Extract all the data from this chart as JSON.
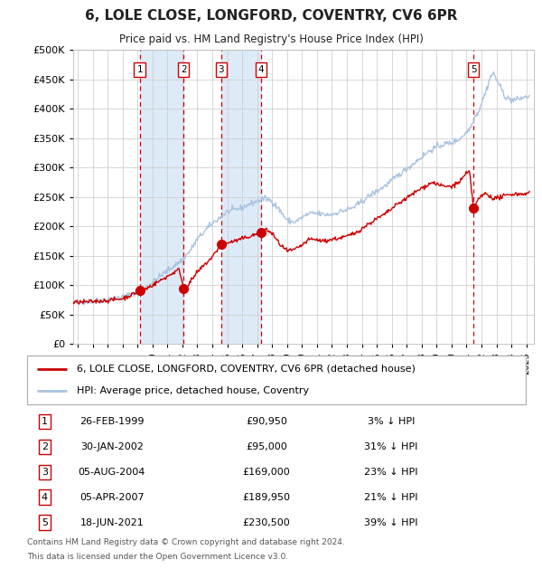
{
  "title": "6, LOLE CLOSE, LONGFORD, COVENTRY, CV6 6PR",
  "subtitle": "Price paid vs. HM Land Registry's House Price Index (HPI)",
  "legend_label_red": "6, LOLE CLOSE, LONGFORD, COVENTRY, CV6 6PR (detached house)",
  "legend_label_blue": "HPI: Average price, detached house, Coventry",
  "footer1": "Contains HM Land Registry data © Crown copyright and database right 2024.",
  "footer2": "This data is licensed under the Open Government Licence v3.0.",
  "transactions": [
    {
      "num": 1,
      "date": "26-FEB-1999",
      "price": 90950,
      "pct": "3%",
      "dir": "↓",
      "year": 1999.15
    },
    {
      "num": 2,
      "date": "30-JAN-2002",
      "price": 95000,
      "pct": "31%",
      "dir": "↓",
      "year": 2002.08
    },
    {
      "num": 3,
      "date": "05-AUG-2004",
      "price": 169000,
      "pct": "23%",
      "dir": "↓",
      "year": 2004.59
    },
    {
      "num": 4,
      "date": "05-APR-2007",
      "price": 189950,
      "pct": "21%",
      "dir": "↓",
      "year": 2007.26
    },
    {
      "num": 5,
      "date": "18-JUN-2021",
      "price": 230500,
      "pct": "39%",
      "dir": "↓",
      "year": 2021.46
    }
  ],
  "hpi_color": "#aac4e0",
  "price_color": "#cc0000",
  "dashed_line_color": "#cc0000",
  "shade_color": "#ddeaf7",
  "grid_color": "#d0d0d0",
  "bg_color": "#ffffff",
  "plot_bg_color": "#ffffff",
  "ylim": [
    0,
    500000
  ],
  "yticks": [
    0,
    50000,
    100000,
    150000,
    200000,
    250000,
    300000,
    350000,
    400000,
    450000,
    500000
  ],
  "xlim_start": 1994.7,
  "xlim_end": 2025.5
}
